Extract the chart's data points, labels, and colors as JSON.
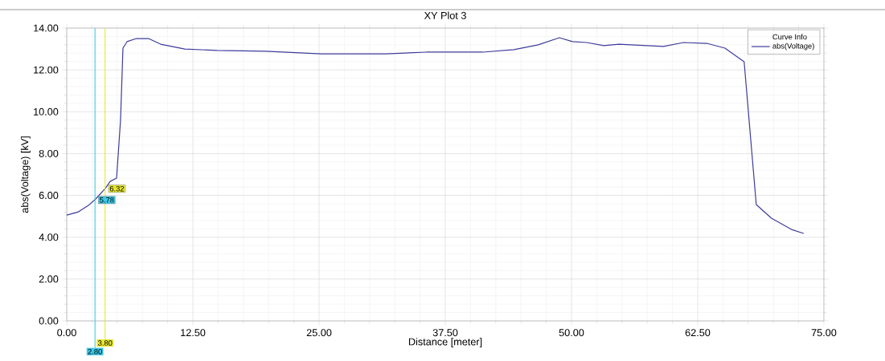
{
  "chart_data": {
    "type": "line",
    "title": "XY Plot 3",
    "xlabel": "Distance [meter]",
    "ylabel": "abs(Voltage) [kV]",
    "legend_title": "Curve Info",
    "x": [
      0,
      1.1,
      2.15,
      2.87,
      3.82,
      4.3,
      4.94,
      5.33,
      5.57,
      5.97,
      6.9,
      8.1,
      9.3,
      11.7,
      14.9,
      19.7,
      25.2,
      31.6,
      35.6,
      41.2,
      44.3,
      46.7,
      48.8,
      50.1,
      51.5,
      53.2,
      54.7,
      57.5,
      59.1,
      61.1,
      63.4,
      65.2,
      67.1,
      68.3,
      69.8,
      71.8,
      73.0
    ],
    "series": [
      {
        "name": "abs(Voltage)",
        "color": "#3c3c9c",
        "values": [
          5.06,
          5.2,
          5.52,
          5.83,
          6.33,
          6.67,
          6.83,
          9.6,
          13.04,
          13.35,
          13.5,
          13.5,
          13.23,
          13.0,
          12.93,
          12.89,
          12.77,
          12.77,
          12.85,
          12.85,
          12.97,
          13.2,
          13.54,
          13.35,
          13.31,
          13.16,
          13.23,
          13.16,
          13.12,
          13.31,
          13.27,
          13.04,
          12.39,
          5.56,
          4.91,
          4.37,
          4.18
        ]
      }
    ],
    "xlim": [
      0,
      75
    ],
    "ylim": [
      0,
      14
    ],
    "xticks": [
      {
        "value": 0,
        "label": "0.00"
      },
      {
        "value": 12.5,
        "label": "12.50"
      },
      {
        "value": 25,
        "label": "25.00"
      },
      {
        "value": 37.5,
        "label": "37.50"
      },
      {
        "value": 50,
        "label": "50.00"
      },
      {
        "value": 62.5,
        "label": "62.50"
      },
      {
        "value": 75,
        "label": "75.00"
      }
    ],
    "yticks": [
      {
        "value": 0,
        "label": "0.00"
      },
      {
        "value": 2,
        "label": "2.00"
      },
      {
        "value": 4,
        "label": "4.00"
      },
      {
        "value": 6,
        "label": "6.00"
      },
      {
        "value": 8,
        "label": "8.00"
      },
      {
        "value": 10,
        "label": "10.00"
      },
      {
        "value": 12,
        "label": "12.00"
      },
      {
        "value": 14,
        "label": "14.00"
      }
    ],
    "ref_lines": [
      {
        "axis": "x",
        "value": 2.8,
        "label": "2.80",
        "color": "#3cc8e6"
      },
      {
        "axis": "x",
        "value": 3.8,
        "label": "3.80",
        "color": "#e6e632"
      }
    ],
    "annotations": [
      {
        "text": "5.78",
        "x": 2.8,
        "y": 5.78
      },
      {
        "text": "6.32",
        "x": 3.8,
        "y": 6.32
      }
    ],
    "grid": true,
    "legend": "top right",
    "marker": "none",
    "line_style": "solid"
  }
}
